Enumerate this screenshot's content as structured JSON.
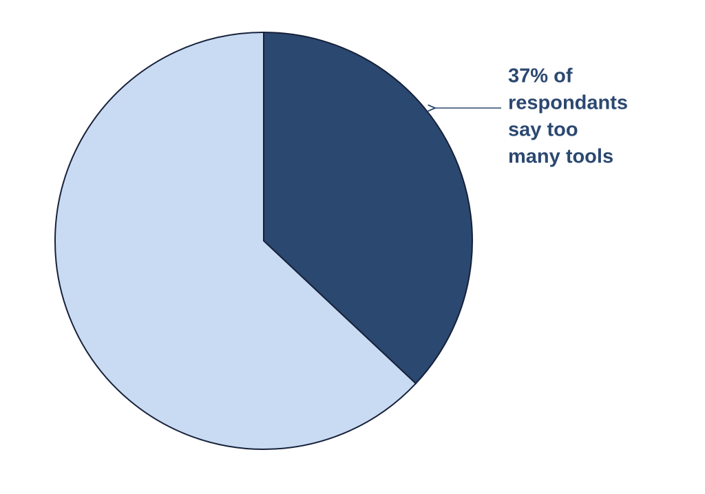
{
  "chart_data": {
    "type": "pie",
    "values": [
      37,
      63
    ],
    "colors": [
      "#2b4870",
      "#c9dbf2"
    ],
    "annotation": [
      "37% of",
      "respondants",
      "say too",
      "many tools"
    ]
  }
}
